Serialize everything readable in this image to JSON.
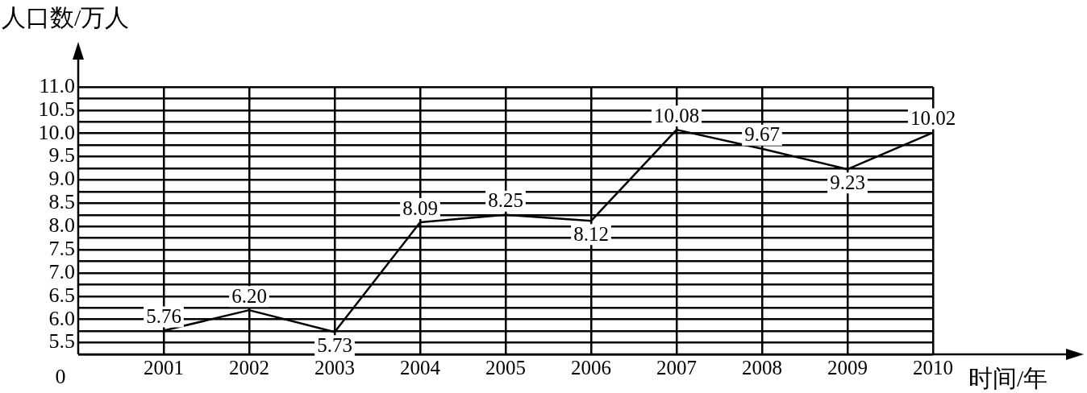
{
  "chart_data": {
    "type": "line",
    "xlabel": "时间/年",
    "ylabel": "人口数/万人",
    "categories": [
      "2001",
      "2002",
      "2003",
      "2004",
      "2005",
      "2006",
      "2007",
      "2008",
      "2009",
      "2010"
    ],
    "series": [
      {
        "color": "#000000",
        "values": [
          5.76,
          6.2,
          5.73,
          8.09,
          8.25,
          8.12,
          10.08,
          9.67,
          9.23,
          10.02
        ],
        "value_labels": [
          "5.76",
          "6.20",
          "5.73",
          "8.09",
          "8.25",
          "8.12",
          "10.08",
          "9.67",
          "9.23",
          "10.02"
        ]
      }
    ],
    "ylim": [
      5.25,
      11
    ],
    "yticks": [
      {
        "value": 5.25,
        "label": null
      },
      {
        "value": 5.5,
        "label": "5.5"
      },
      {
        "value": 5.75,
        "label": null
      },
      {
        "value": 6,
        "label": "6.0"
      },
      {
        "value": 6.25,
        "label": null
      },
      {
        "value": 6.5,
        "label": "6.5"
      },
      {
        "value": 6.75,
        "label": null
      },
      {
        "value": 7,
        "label": "7.0"
      },
      {
        "value": 7.25,
        "label": null
      },
      {
        "value": 7.5,
        "label": "7.5"
      },
      {
        "value": 7.75,
        "label": null
      },
      {
        "value": 8,
        "label": "8.0"
      },
      {
        "value": 8.25,
        "label": null
      },
      {
        "value": 8.5,
        "label": "8.5"
      },
      {
        "value": 8.75,
        "label": null
      },
      {
        "value": 9,
        "label": "9.0"
      },
      {
        "value": 9.25,
        "label": null
      },
      {
        "value": 9.5,
        "label": "9.5"
      },
      {
        "value": 9.75,
        "label": null
      },
      {
        "value": 10,
        "label": "10.0"
      },
      {
        "value": 10.25,
        "label": null
      },
      {
        "value": 10.5,
        "label": "10.5"
      },
      {
        "value": 10.75,
        "label": null
      },
      {
        "value": 11,
        "label": "11.0"
      }
    ],
    "annotations": [
      "0"
    ],
    "grid": true,
    "legend": false,
    "marker": "none",
    "line_style": "solid"
  }
}
